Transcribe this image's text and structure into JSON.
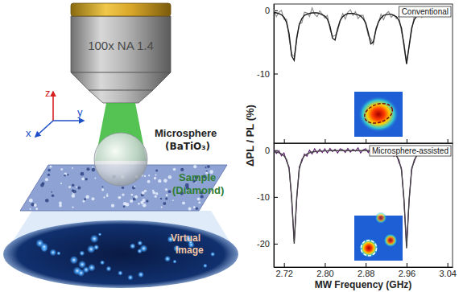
{
  "chart_data": [
    {
      "type": "line",
      "title": "Conventional",
      "y_label": "ΔPL / PL (%)",
      "xlim": [
        2.7,
        3.05
      ],
      "xticks": [
        2.72,
        {
          "value": 2.8,
          "label": "2.80"
        },
        2.88,
        2.96,
        3.04
      ],
      "ylim": [
        -21,
        1
      ],
      "yticks": [
        0,
        -10
      ],
      "tick_labels": "y",
      "x": [
        2.7,
        2.705,
        2.71,
        2.715,
        2.72,
        2.725,
        2.73,
        2.735,
        2.74,
        2.745,
        2.75,
        2.755,
        2.76,
        2.765,
        2.77,
        2.775,
        2.78,
        2.785,
        2.79,
        2.795,
        2.8,
        2.805,
        2.81,
        2.815,
        2.82,
        2.825,
        2.83,
        2.835,
        2.84,
        2.845,
        2.85,
        2.855,
        2.86,
        2.865,
        2.87,
        2.875,
        2.88,
        2.885,
        2.89,
        2.895,
        2.9,
        2.905,
        2.91,
        2.915,
        2.92,
        2.925,
        2.93,
        2.935,
        2.94,
        2.945,
        2.95,
        2.955,
        2.96,
        2.965,
        2.97,
        2.975,
        2.98,
        2.985,
        2.99,
        2.995,
        3.0,
        3.005,
        3.01,
        3.015,
        3.02,
        3.025,
        3.03,
        3.035,
        3.04,
        3.045
      ],
      "series": [
        {
          "color": "#8a8a8a",
          "line_style": "solid",
          "values": [
            0.1,
            -1.0,
            -0.3,
            0.0,
            -1.4,
            -1.4,
            -4.5,
            -6.9,
            -7.3,
            -4.7,
            -2.1,
            -2.0,
            -0.3,
            -0.4,
            -1.0,
            0.4,
            -0.6,
            -1.0,
            -0.1,
            -0.6,
            -1.2,
            -0.8,
            -3.0,
            -4.1,
            -4.0,
            -3.3,
            -1.7,
            -0.5,
            -1.4,
            -0.3,
            0.1,
            -0.8,
            -0.2,
            -1.3,
            -0.8,
            -0.8,
            -2.2,
            -4.0,
            -4.5,
            -5.4,
            -2.8,
            -1.9,
            -0.6,
            -1.5,
            -0.5,
            -0.2,
            -1.1,
            -0.7,
            -1.3,
            -0.9,
            -3.4,
            -5.1,
            -8.2,
            -5.8,
            -3.2,
            -0.9,
            -1.0,
            -0.2,
            -1.1,
            -0.1,
            0.2,
            -0.5,
            -0.1,
            -0.8,
            0.3,
            0.2,
            -0.3,
            0.5,
            -0.5,
            0.1
          ]
        },
        {
          "color": "#1a1a1a",
          "line_style": "solid",
          "values": [
            -0.3,
            -0.4,
            -0.5,
            -0.7,
            -1.1,
            -1.9,
            -3.7,
            -7.2,
            -7.9,
            -4.3,
            -2.2,
            -1.3,
            -0.8,
            -0.6,
            -0.5,
            -0.4,
            -0.4,
            -0.4,
            -0.5,
            -0.7,
            -0.9,
            -1.4,
            -2.5,
            -4.4,
            -4.7,
            -2.9,
            -1.6,
            -1.0,
            -0.7,
            -0.5,
            -0.5,
            -0.5,
            -0.6,
            -0.7,
            -0.9,
            -1.3,
            -2.0,
            -3.5,
            -5.3,
            -5.0,
            -3.1,
            -1.8,
            -1.2,
            -0.8,
            -0.7,
            -0.6,
            -0.6,
            -0.8,
            -1.0,
            -1.6,
            -2.8,
            -5.6,
            -8.5,
            -5.6,
            -2.8,
            -1.5,
            -0.9,
            -0.6,
            -0.4,
            -0.3,
            -0.3,
            -0.2,
            -0.2,
            -0.2,
            -0.1,
            -0.1,
            -0.1,
            -0.1,
            -0.1,
            -0.1
          ]
        }
      ]
    },
    {
      "type": "line",
      "title": "Microsphere-assisted",
      "x_label": "MW Frequency (GHz)",
      "xlim": [
        2.7,
        3.05
      ],
      "xticks": [
        2.72,
        {
          "value": 2.8,
          "label": "2.80"
        },
        2.88,
        2.96,
        3.04
      ],
      "ylim": [
        -25,
        1.5
      ],
      "yticks": [
        0,
        -10,
        -20
      ],
      "x": [
        2.7,
        2.705,
        2.71,
        2.715,
        2.72,
        2.725,
        2.73,
        2.735,
        2.74,
        2.745,
        2.75,
        2.755,
        2.76,
        2.765,
        2.77,
        2.775,
        2.78,
        2.785,
        2.79,
        2.795,
        2.8,
        2.805,
        2.81,
        2.815,
        2.82,
        2.825,
        2.83,
        2.835,
        2.84,
        2.845,
        2.85,
        2.855,
        2.86,
        2.865,
        2.87,
        2.875,
        2.88,
        2.885,
        2.89,
        2.895,
        2.9,
        2.905,
        2.91,
        2.915,
        2.92,
        2.925,
        2.93,
        2.935,
        2.94,
        2.945,
        2.95,
        2.955,
        2.96,
        2.965,
        2.97,
        2.975,
        2.98,
        2.985,
        2.99,
        2.995,
        3.0,
        3.005,
        3.01,
        3.015,
        3.02,
        3.025,
        3.03,
        3.035,
        3.04,
        3.045
      ],
      "series": [
        {
          "color": "#5b1a6e",
          "line_style": "solid",
          "values": [
            0.2,
            -0.7,
            -0.1,
            -1.2,
            -0.6,
            -2.4,
            -3.6,
            -10.6,
            -19.6,
            -10.4,
            -3.5,
            -2.4,
            -0.8,
            -1.3,
            0.0,
            -0.8,
            0.3,
            -0.6,
            0.2,
            -0.5,
            0.3,
            -0.6,
            0.4,
            -0.3,
            0.2,
            -0.6,
            0.3,
            0.1,
            -0.5,
            0.4,
            -0.4,
            0.2,
            -0.2,
            0.5,
            -0.6,
            0.1,
            0.3,
            -0.5,
            0.4,
            -0.3,
            0.2,
            -0.6,
            0.3,
            -0.7,
            0.1,
            -0.8,
            0.0,
            -1.3,
            -0.8,
            -2.6,
            -3.8,
            -11.0,
            -20.6,
            -10.9,
            -3.8,
            -2.5,
            -0.8,
            -1.2,
            -0.1,
            -0.8,
            0.2,
            -0.6,
            0.3,
            -0.5,
            0.3,
            -0.4,
            0.2,
            -0.5,
            0.3,
            -0.2
          ]
        },
        {
          "color": "#444444",
          "line_style": "solid",
          "values": [
            -0.3,
            -0.4,
            -0.55,
            -0.8,
            -1.2,
            -2.0,
            -4.0,
            -10.0,
            -20.0,
            -10.0,
            -4.0,
            -2.0,
            -1.2,
            -0.8,
            -0.55,
            -0.4,
            -0.3,
            -0.25,
            -0.2,
            -0.2,
            -0.15,
            -0.15,
            -0.1,
            -0.1,
            -0.1,
            -0.1,
            -0.1,
            -0.1,
            -0.1,
            -0.1,
            -0.1,
            -0.1,
            -0.1,
            -0.1,
            -0.1,
            -0.1,
            -0.1,
            -0.1,
            -0.1,
            -0.15,
            -0.15,
            -0.2,
            -0.2,
            -0.25,
            -0.3,
            -0.4,
            -0.55,
            -0.8,
            -1.2,
            -2.1,
            -4.2,
            -10.5,
            -21.0,
            -10.5,
            -4.2,
            -2.1,
            -1.2,
            -0.8,
            -0.55,
            -0.4,
            -0.3,
            -0.25,
            -0.2,
            -0.15,
            -0.15,
            -0.1,
            -0.1,
            -0.1,
            -0.1,
            -0.05
          ]
        }
      ]
    }
  ],
  "diagram": {
    "objective": "100x NA 1.4",
    "microsphere": {
      "label": "Microsphere",
      "material": "(BaTiO₃)"
    },
    "sample": {
      "label": "Sample",
      "material": "(Diamond)"
    },
    "virtual_image": [
      "Virtual",
      "Image"
    ],
    "axes": {
      "z": "z",
      "x": "x",
      "y": "y"
    }
  }
}
